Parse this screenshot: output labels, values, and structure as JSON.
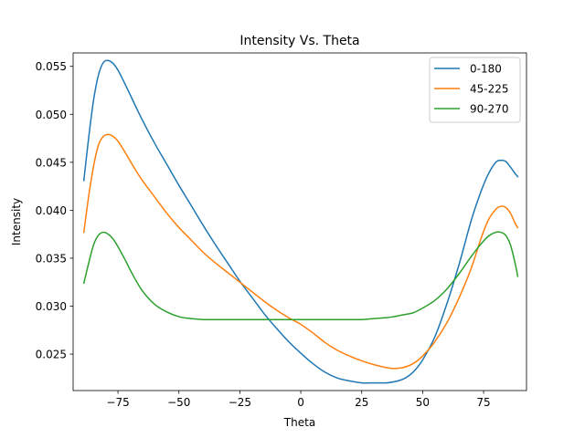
{
  "chart_data": {
    "type": "line",
    "title": "Intensity Vs. Theta",
    "xlabel": "Theta",
    "ylabel": "Intensity",
    "xlim": [
      -93.4,
      92.6
    ],
    "ylim": [
      0.0212,
      0.0564
    ],
    "xticks": [
      -75,
      -50,
      -25,
      0,
      25,
      50,
      75
    ],
    "xtick_labels": [
      "−75",
      "−50",
      "−25",
      "0",
      "25",
      "50",
      "75"
    ],
    "yticks": [
      0.025,
      0.03,
      0.035,
      0.04,
      0.045,
      0.05,
      0.055
    ],
    "ytick_labels": [
      "0.025",
      "0.030",
      "0.035",
      "0.040",
      "0.045",
      "0.050",
      "0.055"
    ],
    "grid": false,
    "legend_position": "top-right",
    "series": [
      {
        "name": "0-180",
        "color": "#1f77b4",
        "x": [
          -89,
          -87,
          -85,
          -83,
          -81,
          -79,
          -77,
          -75,
          -72,
          -69,
          -65,
          -60,
          -55,
          -50,
          -45,
          -40,
          -35,
          -30,
          -25,
          -20,
          -15,
          -10,
          -5,
          0,
          5,
          10,
          15,
          20,
          25,
          30,
          35,
          38,
          42,
          46,
          50,
          55,
          60,
          65,
          70,
          74,
          77,
          80,
          82,
          84,
          86,
          88,
          89
        ],
        "y": [
          0.0431,
          0.0476,
          0.0515,
          0.0541,
          0.0554,
          0.0556,
          0.0553,
          0.0546,
          0.0531,
          0.0515,
          0.0494,
          0.047,
          0.0448,
          0.0426,
          0.0405,
          0.0384,
          0.0364,
          0.0345,
          0.0326,
          0.0309,
          0.0292,
          0.0277,
          0.0263,
          0.0251,
          0.024,
          0.0231,
          0.0225,
          0.0222,
          0.022,
          0.022,
          0.022,
          0.0221,
          0.0224,
          0.0231,
          0.0244,
          0.0268,
          0.0303,
          0.0344,
          0.039,
          0.042,
          0.0438,
          0.045,
          0.0452,
          0.0451,
          0.0445,
          0.0438,
          0.0435
        ]
      },
      {
        "name": "45-225",
        "color": "#ff7f0e",
        "x": [
          -89,
          -87,
          -85,
          -83,
          -81,
          -79,
          -77,
          -75,
          -72,
          -69,
          -65,
          -60,
          -55,
          -50,
          -45,
          -40,
          -35,
          -30,
          -25,
          -20,
          -15,
          -10,
          -5,
          0,
          5,
          10,
          15,
          20,
          25,
          30,
          35,
          38,
          42,
          46,
          50,
          55,
          60,
          65,
          70,
          74,
          77,
          80,
          82,
          84,
          86,
          88,
          89
        ],
        "y": [
          0.0377,
          0.0415,
          0.0446,
          0.0468,
          0.0477,
          0.0479,
          0.0477,
          0.0472,
          0.046,
          0.0447,
          0.0431,
          0.0414,
          0.0397,
          0.0382,
          0.0369,
          0.0356,
          0.0345,
          0.0335,
          0.0325,
          0.0315,
          0.0305,
          0.0296,
          0.0288,
          0.0281,
          0.0272,
          0.0262,
          0.0254,
          0.0248,
          0.0243,
          0.0239,
          0.0236,
          0.0235,
          0.0236,
          0.024,
          0.0248,
          0.0263,
          0.0283,
          0.0309,
          0.034,
          0.0371,
          0.039,
          0.0401,
          0.0404,
          0.0403,
          0.0397,
          0.0386,
          0.0382
        ]
      },
      {
        "name": "90-270",
        "color": "#2ca02c",
        "x": [
          -89,
          -87,
          -85,
          -83,
          -81,
          -79,
          -77,
          -75,
          -72,
          -69,
          -65,
          -60,
          -55,
          -50,
          -45,
          -40,
          -35,
          -30,
          -25,
          -20,
          -15,
          -10,
          -5,
          0,
          5,
          10,
          15,
          20,
          25,
          30,
          35,
          38,
          42,
          46,
          50,
          55,
          60,
          65,
          70,
          74,
          77,
          80,
          82,
          84,
          86,
          88,
          89
        ],
        "y": [
          0.0324,
          0.0345,
          0.0364,
          0.0374,
          0.0377,
          0.0375,
          0.037,
          0.0362,
          0.0348,
          0.0333,
          0.0316,
          0.0302,
          0.0294,
          0.0289,
          0.0287,
          0.0286,
          0.0286,
          0.0286,
          0.0286,
          0.0286,
          0.0286,
          0.0286,
          0.0286,
          0.0286,
          0.0286,
          0.0286,
          0.0286,
          0.0286,
          0.0286,
          0.0287,
          0.0288,
          0.0289,
          0.0291,
          0.0293,
          0.0298,
          0.0306,
          0.0318,
          0.0334,
          0.0352,
          0.0365,
          0.0373,
          0.0377,
          0.0377,
          0.0374,
          0.0364,
          0.0344,
          0.0331
        ]
      }
    ]
  }
}
